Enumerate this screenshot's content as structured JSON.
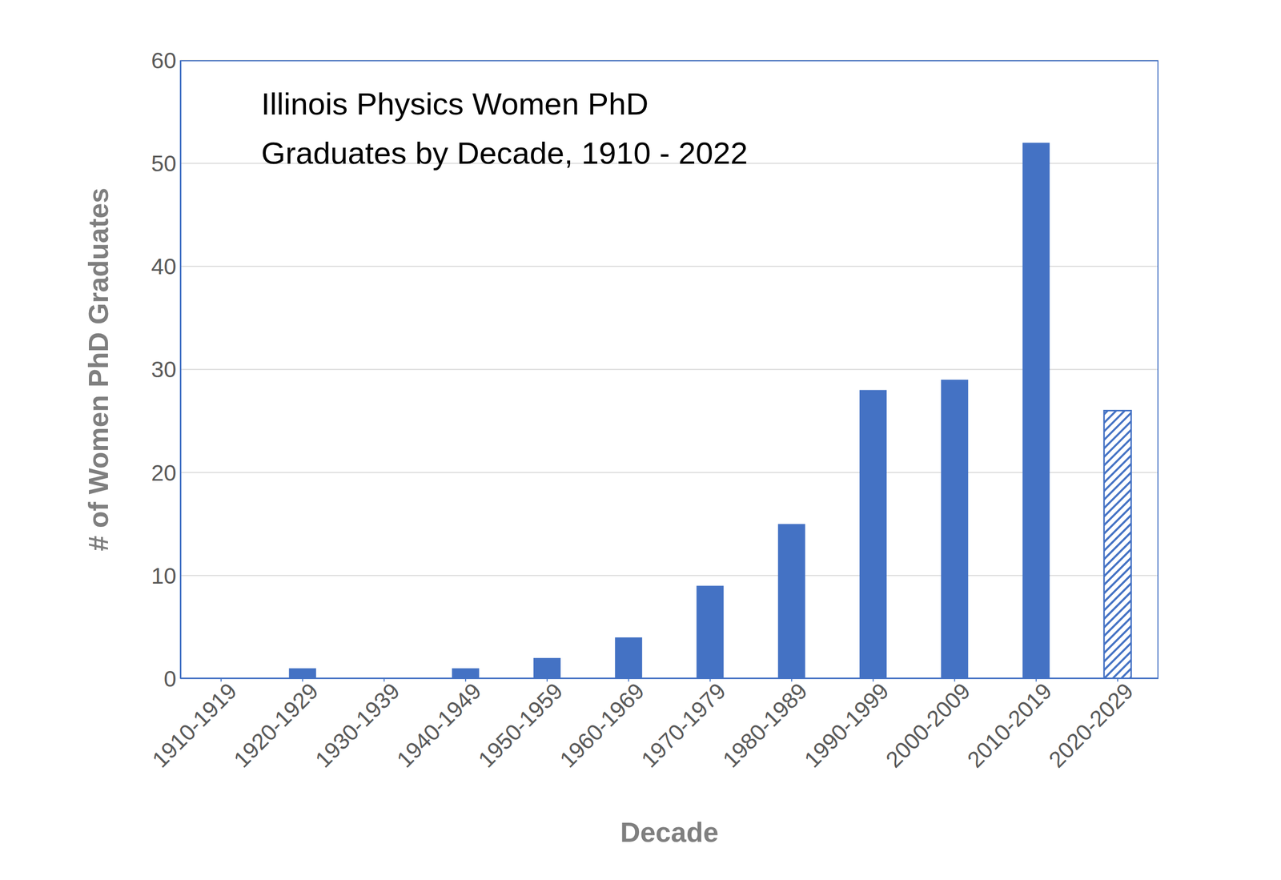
{
  "chart_data": {
    "type": "bar",
    "title": "Illinois Physics Women PhD\nGraduates by Decade, 1910 - 2022",
    "x_label": "Decade",
    "y_label": "# of Women PhD Graduates",
    "categories": [
      "1910-1919",
      "1920-1929",
      "1930-1939",
      "1940-1949",
      "1950-1959",
      "1960-1969",
      "1970-1979",
      "1980-1989",
      "1990-1999",
      "2000-2009",
      "2010-2019",
      "2020-2029"
    ],
    "values": [
      0,
      1,
      0,
      1,
      2,
      4,
      9,
      15,
      28,
      29,
      52,
      26
    ],
    "color": "#4472c4",
    "ylim": [
      0,
      60
    ],
    "yticks": [
      0,
      10,
      20,
      30,
      40,
      50,
      60
    ],
    "grid": true
  }
}
